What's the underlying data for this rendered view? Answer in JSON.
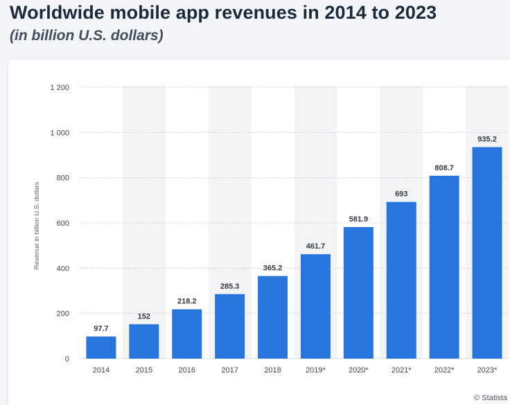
{
  "header": {
    "title": "Worldwide mobile app revenues in 2014 to 2023",
    "subtitle": "(in billion U.S. dollars)"
  },
  "credit": "© Statista",
  "colors": {
    "bar": "#2876dd",
    "stripe": "#f3f4f6",
    "grid": "#c7cbd1",
    "axis_text": "#3f4650",
    "label_text": "#333a42"
  },
  "chart_data": {
    "type": "bar",
    "categories": [
      "2014",
      "2015",
      "2016",
      "2017",
      "2018",
      "2019*",
      "2020*",
      "2021*",
      "2022*",
      "2023*"
    ],
    "values": [
      97.7,
      152,
      218.2,
      285.3,
      365.2,
      461.7,
      581.9,
      693,
      808.7,
      935.2
    ],
    "value_labels": [
      "97.7",
      "152",
      "218.2",
      "285.3",
      "365.2",
      "461.7",
      "581.9",
      "693",
      "808.7",
      "935.2"
    ],
    "ylabel": "Revenue in billion U.S. dollars",
    "ylim": [
      0,
      1200
    ],
    "yticks": [
      0,
      200,
      400,
      600,
      800,
      1000,
      1200
    ],
    "ytick_labels": [
      "0",
      "200",
      "400",
      "600",
      "800",
      "1 000",
      "1 200"
    ],
    "grid": true,
    "legend": "none"
  }
}
